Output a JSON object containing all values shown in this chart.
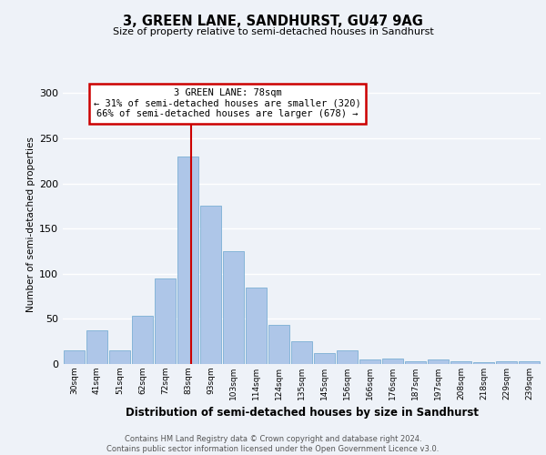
{
  "title1": "3, GREEN LANE, SANDHURST, GU47 9AG",
  "title2": "Size of property relative to semi-detached houses in Sandhurst",
  "xlabel": "Distribution of semi-detached houses by size in Sandhurst",
  "ylabel": "Number of semi-detached properties",
  "categories": [
    "30sqm",
    "41sqm",
    "51sqm",
    "62sqm",
    "72sqm",
    "83sqm",
    "93sqm",
    "103sqm",
    "114sqm",
    "124sqm",
    "135sqm",
    "145sqm",
    "156sqm",
    "166sqm",
    "176sqm",
    "187sqm",
    "197sqm",
    "208sqm",
    "218sqm",
    "229sqm",
    "239sqm"
  ],
  "values": [
    15,
    37,
    15,
    53,
    95,
    230,
    175,
    125,
    85,
    43,
    25,
    12,
    15,
    5,
    6,
    3,
    5,
    3,
    2,
    3,
    3
  ],
  "bar_color": "#aec6e8",
  "bar_edgecolor": "#7bafd4",
  "annotation_text": "3 GREEN LANE: 78sqm\n← 31% of semi-detached houses are smaller (320)\n66% of semi-detached houses are larger (678) →",
  "vline_color": "#cc0000",
  "vline_x": 5.15,
  "box_color": "#ffffff",
  "box_edgecolor": "#cc0000",
  "footer": "Contains HM Land Registry data © Crown copyright and database right 2024.\nContains public sector information licensed under the Open Government Licence v3.0.",
  "ylim": [
    0,
    310
  ],
  "yticks": [
    0,
    50,
    100,
    150,
    200,
    250,
    300
  ],
  "background_color": "#eef2f8"
}
